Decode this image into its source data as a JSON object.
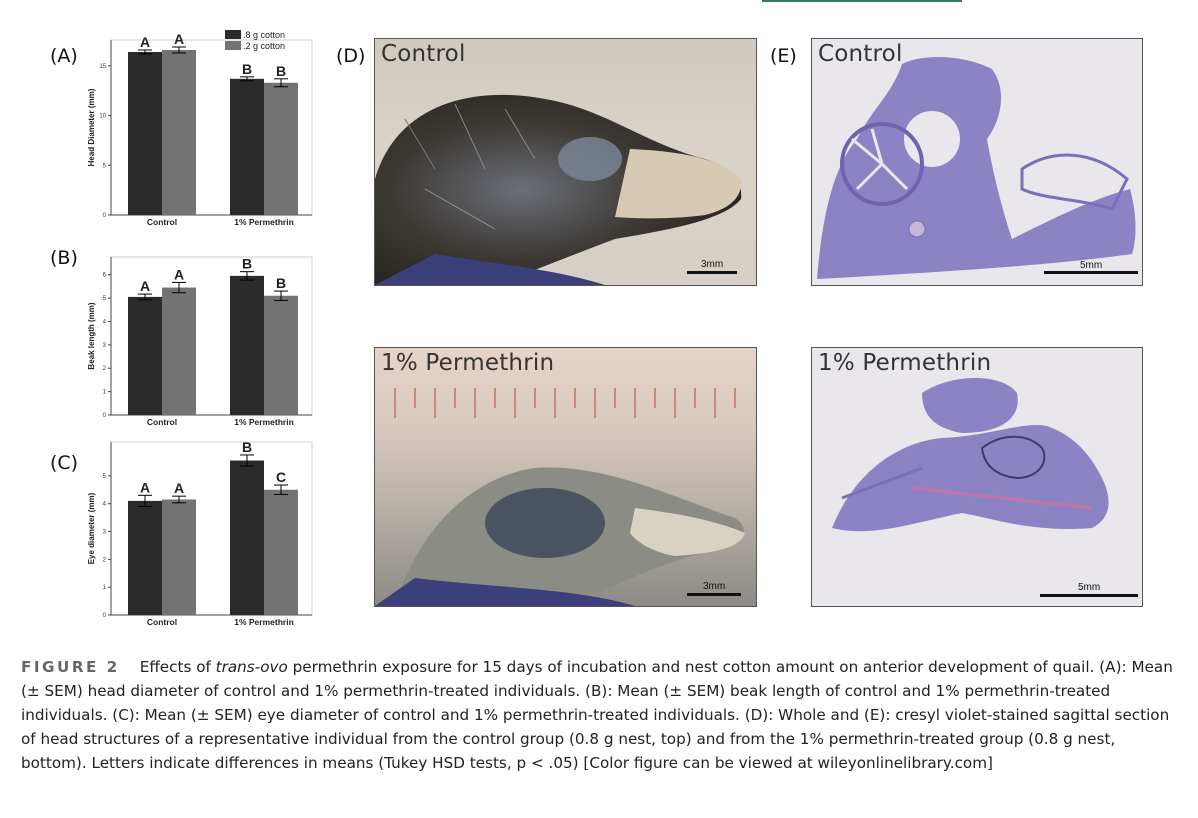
{
  "panels": {
    "a_label": "(A)",
    "b_label": "(B)",
    "c_label": "(C)",
    "d_label": "(D)",
    "e_label": "(E)"
  },
  "legend": [
    {
      "name": ".8 g cotton",
      "color": "#2b2b2b"
    },
    {
      "name": ".2 g cotton",
      "color": "#737373"
    }
  ],
  "chart_data": [
    {
      "type": "bar",
      "panel": "A",
      "categories": [
        "Control",
        "1% Permethrin"
      ],
      "ylabel": "Head Diameter (mm)",
      "ylim": [
        0,
        17
      ],
      "yticks": [
        0,
        5,
        10,
        15
      ],
      "series": [
        {
          "name": ".8 g cotton",
          "values": [
            16.4,
            13.7
          ],
          "errors": [
            0.2,
            0.2
          ],
          "letters": [
            "A",
            "B"
          ]
        },
        {
          "name": ".2 g cotton",
          "values": [
            16.6,
            13.3
          ],
          "errors": [
            0.3,
            0.4
          ],
          "letters": [
            "A",
            "B"
          ]
        }
      ]
    },
    {
      "type": "bar",
      "panel": "B",
      "categories": [
        "Control",
        "1% Permethrin"
      ],
      "ylabel": "Beak length (mm)",
      "ylim": [
        0,
        6.5
      ],
      "yticks": [
        0,
        1,
        2,
        3,
        4,
        5,
        6
      ],
      "series": [
        {
          "name": ".8 g cotton",
          "values": [
            5.05,
            5.95
          ],
          "errors": [
            0.12,
            0.18
          ],
          "letters": [
            "A",
            "B"
          ]
        },
        {
          "name": ".2 g cotton",
          "values": [
            5.45,
            5.1
          ],
          "errors": [
            0.22,
            0.2
          ],
          "letters": [
            "A",
            "B"
          ]
        }
      ]
    },
    {
      "type": "bar",
      "panel": "C",
      "categories": [
        "Control",
        "1% Permethrin"
      ],
      "ylabel": "Eye diameter (mm)",
      "ylim": [
        0,
        6
      ],
      "yticks": [
        0,
        1,
        2,
        3,
        4,
        5
      ],
      "series": [
        {
          "name": ".8 g cotton",
          "values": [
            4.1,
            5.55
          ],
          "errors": [
            0.2,
            0.2
          ],
          "letters": [
            "A",
            "B"
          ]
        },
        {
          "name": ".2 g cotton",
          "values": [
            4.15,
            4.5
          ],
          "errors": [
            0.12,
            0.17
          ],
          "letters": [
            "A",
            "C"
          ]
        }
      ]
    }
  ],
  "photos": {
    "d_top_title": "Control",
    "d_bottom_title": "1% Permethrin",
    "e_top_title": "Control",
    "e_bottom_title": "1% Permethrin",
    "d_scale": "3mm",
    "e_scale": "5mm"
  },
  "caption": {
    "figure_label": "FIGURE 2",
    "part1": "Effects of ",
    "italic": "trans-ovo",
    "part2": " permethrin exposure for 15 days of incubation and nest cotton amount on anterior development of quail. (A): Mean (± SEM) head diameter of control and 1% permethrin-treated individuals. (B): Mean (± SEM) beak length of control and 1% permethrin-treated individuals. (C): Mean (± SEM) eye diameter of control and 1% permethrin-treated individuals. (D): Whole and (E): cresyl violet-stained sagittal section of head structures of a representative individual from the control group (0.8 g nest, top) and from the 1% permethrin-treated group (0.8 g nest, bottom). Letters indicate differences in means (Tukey HSD tests, p < .05) [Color figure can be viewed at wileyonlinelibrary.com]"
  }
}
